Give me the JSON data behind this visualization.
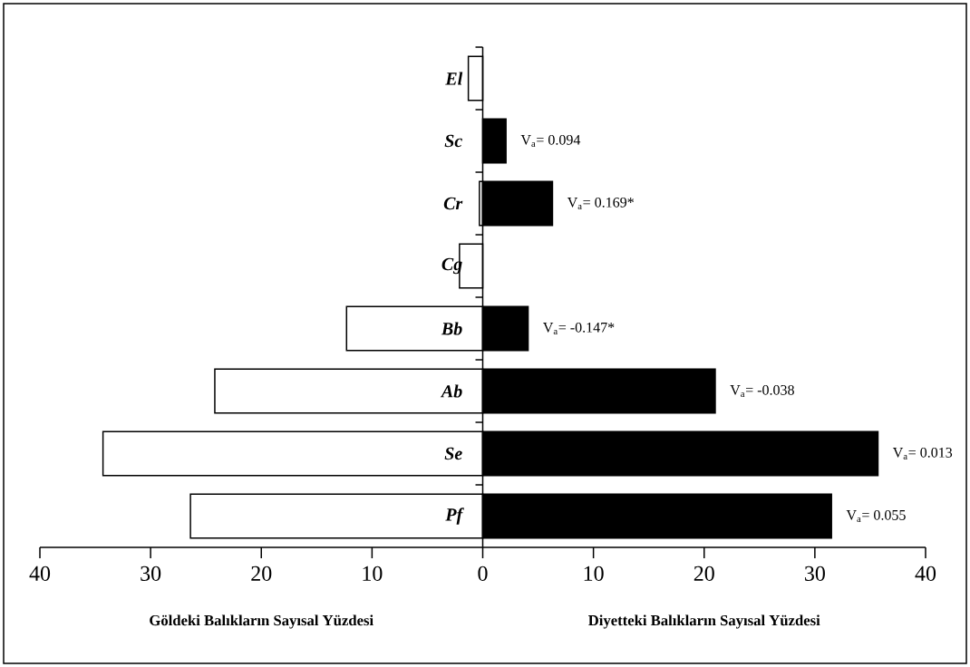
{
  "chart_data": {
    "type": "bar",
    "orientation": "horizontal",
    "stacked": true,
    "categories": [
      "El",
      "Sc",
      "Cr",
      "Cg",
      "Bb",
      "Ab",
      "Se",
      "Pf"
    ],
    "series": [
      {
        "color": "#ffffff",
        "values": [
          -1.3,
          0,
          -0.3,
          -2.1,
          -12.3,
          -24.2,
          -34.3,
          -26.4
        ]
      },
      {
        "color": "#000000",
        "values": [
          0,
          2.1,
          6.3,
          0,
          4.1,
          21.0,
          35.7,
          31.5
        ]
      }
    ],
    "xlim": [
      -40,
      40
    ],
    "xticks": [
      {
        "value": -40,
        "label": "40"
      },
      {
        "value": -30,
        "label": "30"
      },
      {
        "value": -20,
        "label": "20"
      },
      {
        "value": -10,
        "label": "10"
      },
      0,
      10,
      20,
      30,
      40
    ],
    "annotations": [
      {
        "text": "V$_{a}$= 0.094",
        "x": 2.1,
        "y": "Sc"
      },
      {
        "text": "V$_{a}$= 0.169*",
        "x": 6.3,
        "y": "Cr"
      },
      {
        "text": "V$_{a}$= -0.147*",
        "x": 4.1,
        "y": "Bb"
      },
      {
        "text": "V$_{a}$= -0.038",
        "x": 21.0,
        "y": "Ab"
      },
      {
        "text": "V$_{a}$= 0.013",
        "x": 35.7,
        "y": "Se"
      },
      {
        "text": "V$_{a}$= 0.055",
        "x": 31.5,
        "y": "Pf"
      },
      "Göldeki Balıkların Sayısal Yüzdesi",
      "Diyetteki Balıkların Sayısal Yüzdesi"
    ]
  }
}
